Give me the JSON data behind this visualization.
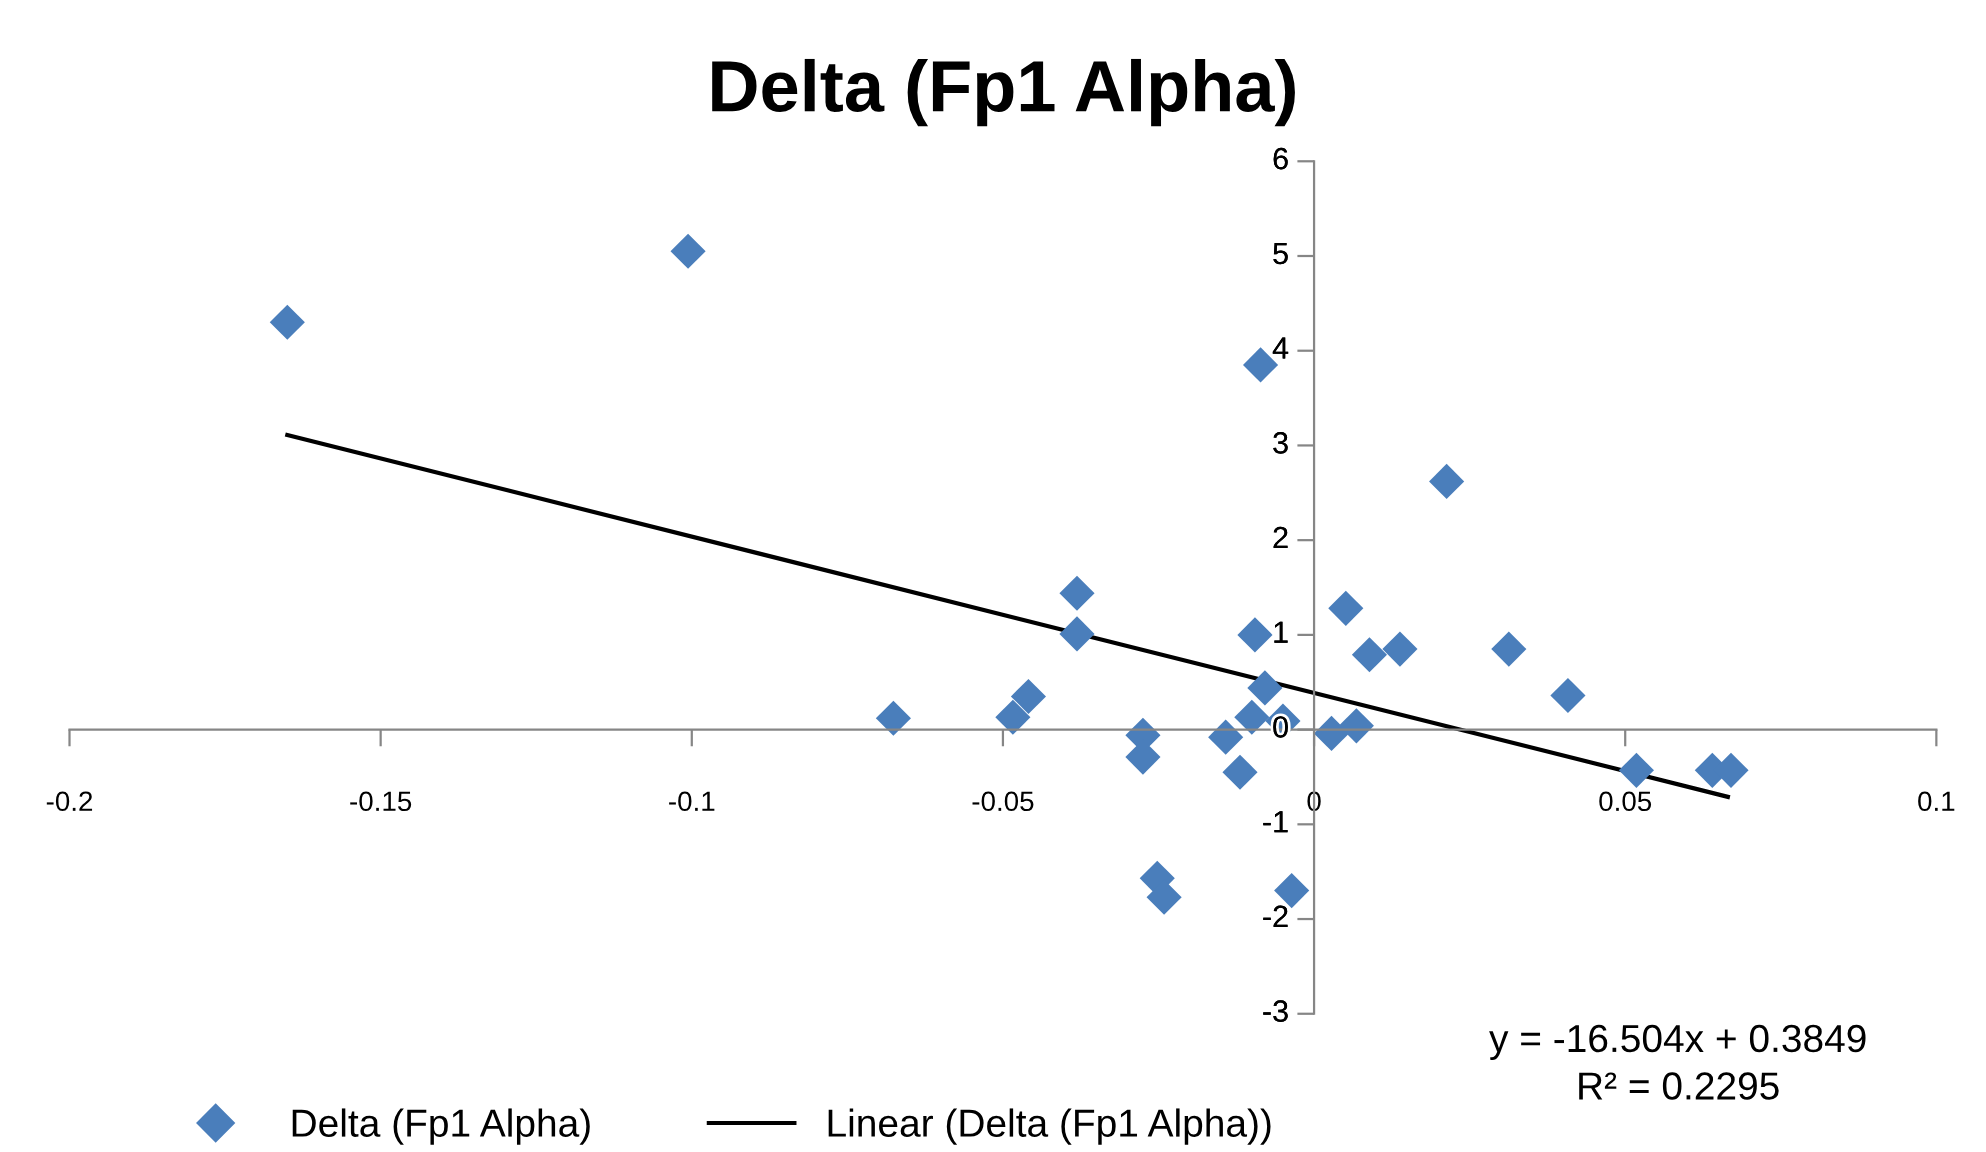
{
  "chart_data": {
    "type": "scatter",
    "title": "Delta (Fp1 Alpha)",
    "xlim": [
      -0.2,
      0.1
    ],
    "xticks": [
      {
        "value": -0.2,
        "label": "-0.2"
      },
      {
        "value": -0.15,
        "label": "-0.15"
      },
      {
        "value": -0.1,
        "label": "-0.1"
      },
      {
        "value": -0.05,
        "label": "-0.05"
      },
      0,
      0.05,
      0.1
    ],
    "ylim": [
      -3,
      6
    ],
    "yticks": [
      {
        "value": -3,
        "label": "-3"
      },
      {
        "value": -2,
        "label": "-2"
      },
      {
        "value": -1,
        "label": "-1"
      },
      0,
      1,
      2,
      3,
      4,
      5,
      6
    ],
    "grid": false,
    "legend": "bottom",
    "annotations": [
      "y = -16.504x + 0.3849\nR² = 0.2295"
    ],
    "series": [
      {
        "name": "Delta (Fp1 Alpha)",
        "color": "#4a7ebb",
        "marker": "diamond",
        "x": [
          -0.165,
          -0.1006,
          -0.0086,
          0.0213,
          0.0051,
          0.0089,
          0.0138,
          0.0313,
          0.0408,
          0.0518,
          0.064,
          0.067,
          0.0028,
          0.0068,
          -0.005,
          -0.0079,
          -0.0095,
          -0.01,
          -0.0142,
          -0.0119,
          -0.0381,
          -0.0381,
          -0.0676,
          -0.0484,
          -0.0459,
          -0.0275,
          -0.0275,
          -0.0252,
          -0.0241,
          -0.0036
        ],
        "values": [
          4.3,
          5.05,
          3.85,
          2.62,
          1.28,
          0.79,
          0.85,
          0.85,
          0.36,
          -0.43,
          -0.43,
          -0.43,
          -0.04,
          0.04,
          0.09,
          0.44,
          1.0,
          0.13,
          -0.08,
          -0.45,
          1.44,
          1.01,
          0.12,
          0.13,
          0.35,
          -0.06,
          -0.29,
          -1.57,
          -1.77,
          -1.7
        ]
      },
      {
        "name": "Linear (Delta (Fp1 Alpha))",
        "type": "line",
        "color": "#000000",
        "marker": "none",
        "line_style": "solid",
        "x": [
          -0.165,
          0.0665
        ],
        "values": [
          3.11,
          -0.71
        ]
      }
    ]
  }
}
